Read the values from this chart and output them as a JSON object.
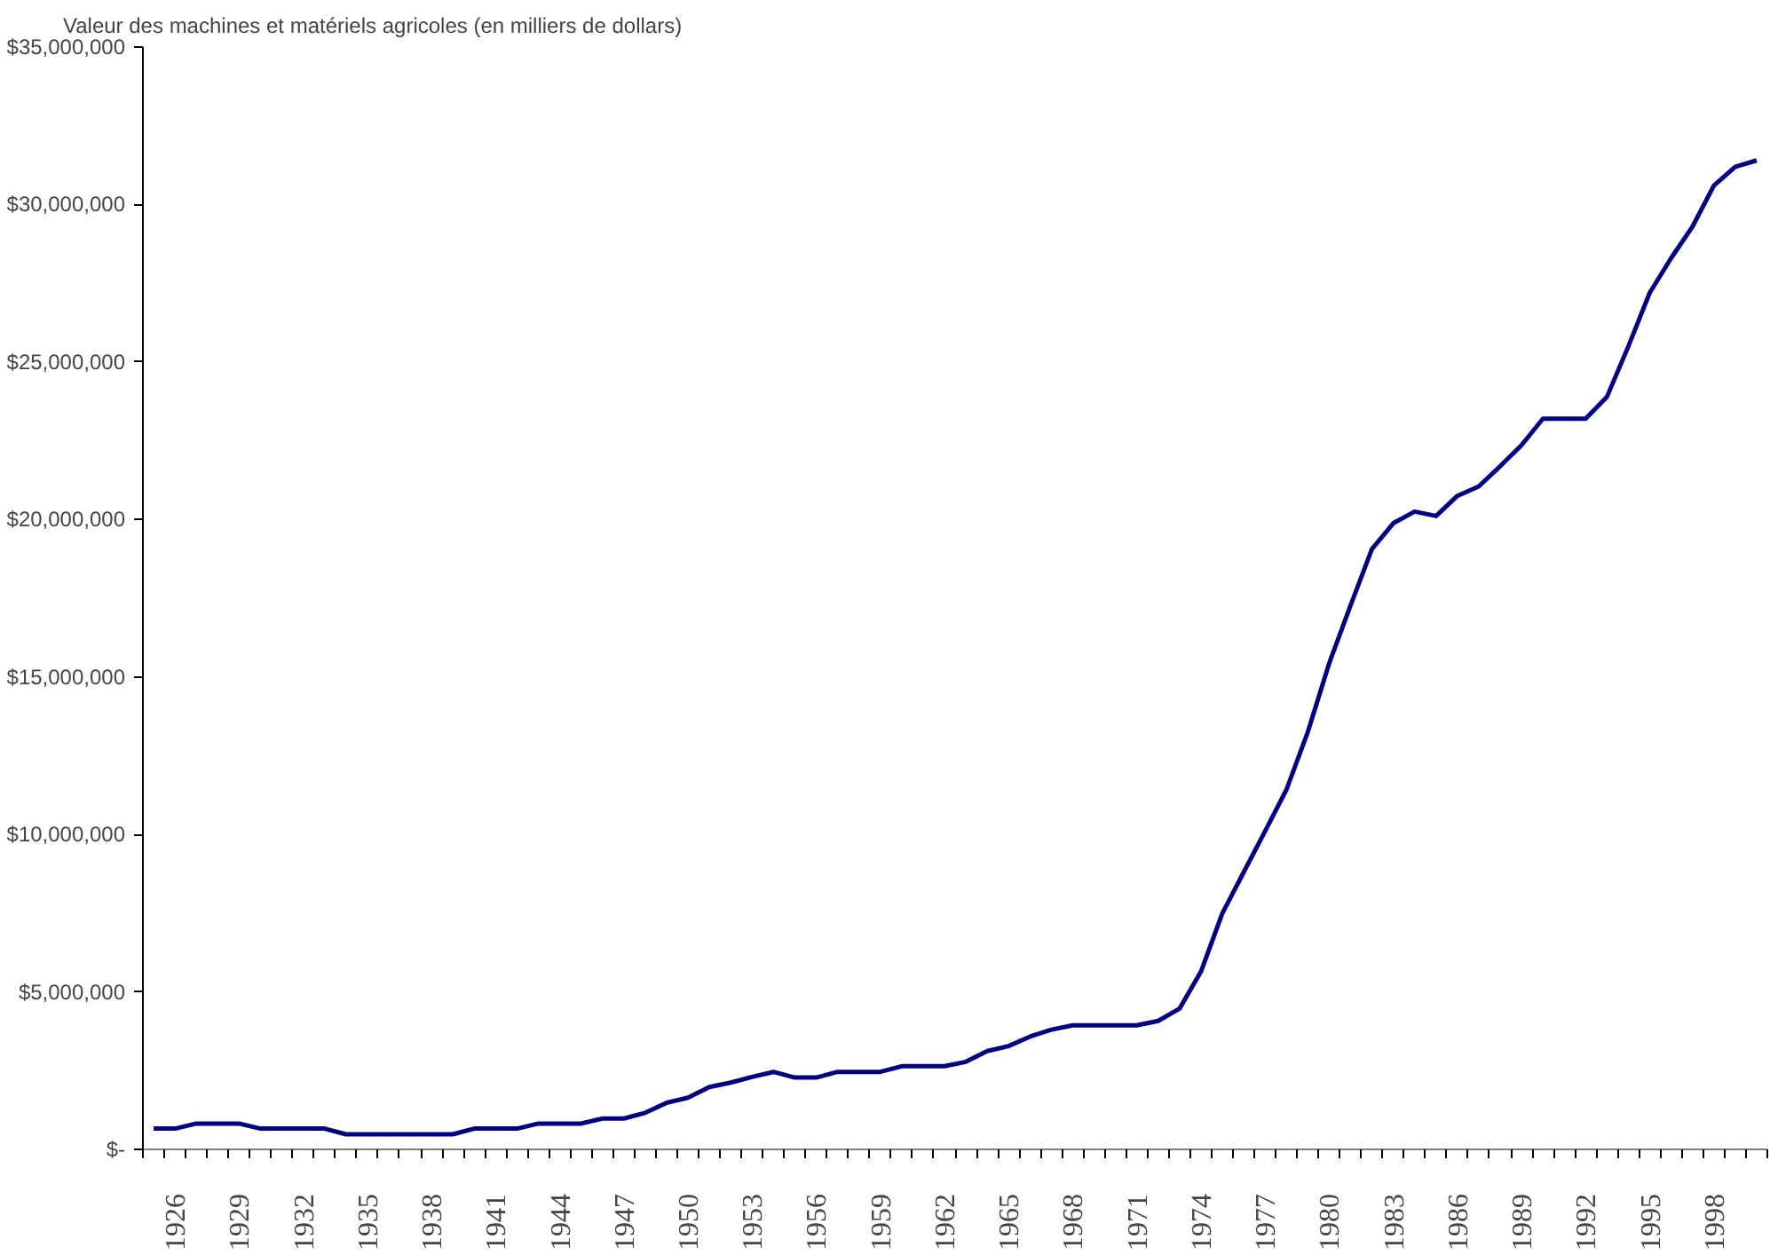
{
  "chart_data": {
    "type": "line",
    "title": "Valeur des machines et matériels agricoles (en milliers de dollars)",
    "categories": [
      null,
      "1926",
      null,
      null,
      "1929",
      null,
      null,
      "1932",
      null,
      null,
      "1935",
      null,
      null,
      "1938",
      null,
      null,
      "1941",
      null,
      null,
      "1944",
      null,
      null,
      "1947",
      null,
      null,
      "1950",
      null,
      null,
      "1953",
      null,
      null,
      "1956",
      null,
      null,
      "1959",
      null,
      null,
      "1962",
      null,
      null,
      "1965",
      null,
      null,
      "1968",
      null,
      null,
      "1971",
      null,
      null,
      "1974",
      null,
      null,
      "1977",
      null,
      null,
      "1980",
      null,
      null,
      "1983",
      null,
      null,
      "1986",
      null,
      null,
      "1989",
      null,
      null,
      "1992",
      null,
      null,
      "1995",
      null,
      null,
      "1998",
      null,
      null
    ],
    "series": [
      {
        "color": "#000080",
        "values": [
          660000,
          660000,
          820000,
          820000,
          820000,
          660000,
          660000,
          660000,
          660000,
          480000,
          480000,
          480000,
          480000,
          480000,
          480000,
          660000,
          660000,
          660000,
          820000,
          820000,
          820000,
          980000,
          980000,
          1160000,
          1480000,
          1640000,
          1980000,
          2120000,
          2300000,
          2460000,
          2280000,
          2280000,
          2460000,
          2460000,
          2460000,
          2640000,
          2640000,
          2640000,
          2780000,
          3120000,
          3280000,
          3580000,
          3800000,
          3940000,
          3940000,
          3940000,
          3940000,
          4080000,
          4470000,
          5640000,
          7490000,
          8800000,
          10100000,
          11420000,
          13250000,
          15430000,
          17270000,
          19060000,
          19880000,
          20250000,
          20110000,
          20750000,
          21050000,
          21690000,
          22360000,
          23200000,
          23200000,
          23200000,
          23900000,
          25500000,
          27200000,
          28300000,
          29300000,
          30600000,
          31200000,
          31400000
        ]
      }
    ],
    "ylim": [
      0,
      35000000
    ],
    "yticks": [
      {
        "value": 0,
        "label": "$-"
      },
      {
        "value": 5000000,
        "label": "$5,000,000"
      },
      {
        "value": 10000000,
        "label": "$10,000,000"
      },
      {
        "value": 15000000,
        "label": "$15,000,000"
      },
      {
        "value": 20000000,
        "label": "$20,000,000"
      },
      {
        "value": 25000000,
        "label": "$25,000,000"
      },
      {
        "value": 30000000,
        "label": "$30,000,000"
      },
      {
        "value": 35000000,
        "label": "$35,000,000"
      }
    ],
    "grid": false,
    "marker": "none",
    "line_style": "solid"
  }
}
